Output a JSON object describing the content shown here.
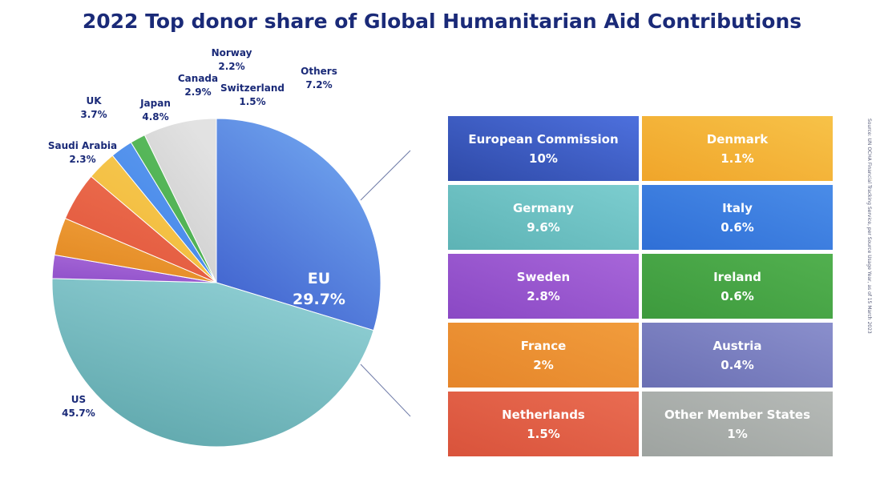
{
  "chart_data": [
    {
      "type": "pie",
      "title": "2022 Top donor share of Global Humanitarian Aid Contributions",
      "slices": [
        {
          "label": "EU",
          "value_label": "29.7%",
          "value": 29.7,
          "color": "#3c5ccb",
          "color2": "#6fa3ee"
        },
        {
          "label": "US",
          "value_label": "45.7%",
          "value": 45.7,
          "color": "#5aa3a8",
          "color2": "#8dcdd2"
        },
        {
          "label": "Saudi Arabia",
          "value_label": "2.3%",
          "value": 2.3,
          "color": "#8f4fc9",
          "color2": "#a86ad8"
        },
        {
          "label": "UK",
          "value_label": "3.7%",
          "value": 3.7,
          "color": "#e0861e",
          "color2": "#ef9d3a"
        },
        {
          "label": "Japan",
          "value_label": "4.8%",
          "value": 4.8,
          "color": "#e0543a",
          "color2": "#ec6d4e"
        },
        {
          "label": "Canada",
          "value_label": "2.9%",
          "value": 2.9,
          "color": "#f0b635",
          "color2": "#f6c850"
        },
        {
          "label": "Norway",
          "value_label": "2.2%",
          "value": 2.2,
          "color": "#3f83e6",
          "color2": "#5b98ef"
        },
        {
          "label": "Switzerland",
          "value_label": "1.5%",
          "value": 1.5,
          "color": "#45a84a",
          "color2": "#5cbc5f"
        },
        {
          "label": "Others",
          "value_label": "7.2%",
          "value": 7.2,
          "color": "#c8c8c8",
          "color2": "#e2e2e2"
        }
      ]
    },
    {
      "type": "table",
      "cells": [
        {
          "label": "European Commission",
          "value_label": "10%",
          "value": 10,
          "color": "#2f4aa8",
          "color2": "#4d70dd"
        },
        {
          "label": "Denmark",
          "value_label": "1.1%",
          "value": 1.1,
          "color": "#f0a52a",
          "color2": "#f7c248"
        },
        {
          "label": "Germany",
          "value_label": "9.6%",
          "value": 9.6,
          "color": "#5db3b5",
          "color2": "#7ccdcf"
        },
        {
          "label": "Italy",
          "value_label": "0.6%",
          "value": 0.6,
          "color": "#2f6fd6",
          "color2": "#4a8ce8"
        },
        {
          "label": "Sweden",
          "value_label": "2.8%",
          "value": 2.8,
          "color": "#8a48c4",
          "color2": "#a766d9"
        },
        {
          "label": "Ireland",
          "value_label": "0.6%",
          "value": 0.6,
          "color": "#3d9a3d",
          "color2": "#52b04f"
        },
        {
          "label": "France",
          "value_label": "2%",
          "value": 2,
          "color": "#e5852a",
          "color2": "#f19c3c"
        },
        {
          "label": "Austria",
          "value_label": "0.4%",
          "value": 0.4,
          "color": "#6a6fb3",
          "color2": "#8a8fcc"
        },
        {
          "label": "Netherlands",
          "value_label": "1.5%",
          "value": 1.5,
          "color": "#d9533b",
          "color2": "#e96c52"
        },
        {
          "label": "Other Member States",
          "value_label": "1%",
          "value": 1,
          "color": "#9ea3a0",
          "color2": "#b6bab7"
        }
      ]
    }
  ],
  "source": "Source: UN OCHA Financial Tracking Service, per Source Usage Year, as of 15 March 2023"
}
